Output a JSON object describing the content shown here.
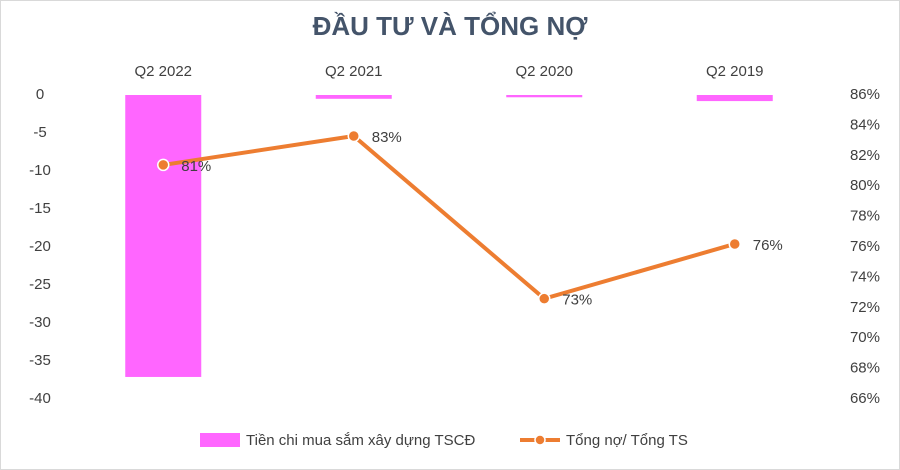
{
  "chart_data": {
    "type": "bar-line",
    "title": "ĐẦU TƯ VÀ TỔNG NỢ",
    "categories": [
      "Q2 2022",
      "Q2 2021",
      "Q2 2020",
      "Q2 2019"
    ],
    "series": [
      {
        "name": "Tiền chi mua sắm xây dựng TSCĐ",
        "type": "bar",
        "color": "#ff66ff",
        "values": [
          -37.1,
          -0.5,
          -0.3,
          -0.8
        ]
      },
      {
        "name": "Tổng nợ/ Tổng TS",
        "type": "line",
        "axis": "y2",
        "color": "#ed7d31",
        "values": [
          81.4,
          83.3,
          72.6,
          76.2
        ],
        "value_labels": [
          "81%",
          "83%",
          "73%",
          "76%"
        ]
      }
    ],
    "ylim": [
      0,
      -40
    ],
    "yticks": [
      0,
      -5,
      -10,
      -15,
      -20,
      -25,
      -30,
      -35,
      -40
    ],
    "y2lim": [
      86,
      66
    ],
    "y2ticks": [
      {
        "value": 86,
        "label": "86%"
      },
      {
        "value": 84,
        "label": "84%"
      },
      {
        "value": 82,
        "label": "82%"
      },
      {
        "value": 80,
        "label": "80%"
      },
      {
        "value": 78,
        "label": "78%"
      },
      {
        "value": 76,
        "label": "76%"
      },
      {
        "value": 74,
        "label": "74%"
      },
      {
        "value": 72,
        "label": "72%"
      },
      {
        "value": 70,
        "label": "70%"
      },
      {
        "value": 68,
        "label": "68%"
      },
      {
        "value": 66,
        "label": "66%"
      }
    ],
    "grid": false,
    "legend": "bottom"
  }
}
